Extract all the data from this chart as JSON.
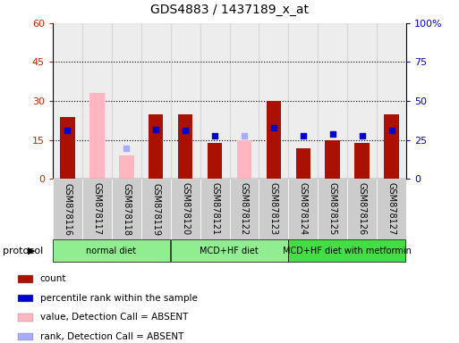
{
  "title": "GDS4883 / 1437189_x_at",
  "samples": [
    "GSM878116",
    "GSM878117",
    "GSM878118",
    "GSM878119",
    "GSM878120",
    "GSM878121",
    "GSM878122",
    "GSM878123",
    "GSM878124",
    "GSM878125",
    "GSM878126",
    "GSM878127"
  ],
  "count_values": [
    24,
    null,
    null,
    25,
    25,
    14,
    null,
    30,
    12,
    15,
    14,
    25
  ],
  "count_absent_values": [
    null,
    33,
    9,
    null,
    null,
    null,
    15,
    null,
    null,
    null,
    null,
    null
  ],
  "percentile_values": [
    31,
    null,
    null,
    32,
    31,
    28,
    null,
    33,
    28,
    29,
    28,
    31
  ],
  "percentile_absent_values": [
    null,
    null,
    20,
    null,
    null,
    null,
    28,
    null,
    null,
    null,
    null,
    null
  ],
  "left_ylim": [
    0,
    60
  ],
  "right_ylim": [
    0,
    100
  ],
  "left_yticks": [
    0,
    15,
    30,
    45,
    60
  ],
  "right_yticks": [
    0,
    25,
    50,
    75,
    100
  ],
  "left_yticklabels": [
    "0",
    "15",
    "30",
    "45",
    "60"
  ],
  "right_yticklabels": [
    "0",
    "25",
    "50",
    "75",
    "100%"
  ],
  "protocols": [
    {
      "label": "normal diet",
      "start": 0,
      "end": 4,
      "color": "#90ee90"
    },
    {
      "label": "MCD+HF diet",
      "start": 4,
      "end": 8,
      "color": "#90ee90"
    },
    {
      "label": "MCD+HF diet with metformin",
      "start": 8,
      "end": 12,
      "color": "#44dd44"
    }
  ],
  "bar_color_present": "#aa1100",
  "bar_color_absent": "#ffb6c1",
  "dot_color_present": "#0000cc",
  "dot_color_absent": "#aaaaff",
  "bar_width": 0.5,
  "legend_items": [
    {
      "label": "count",
      "color": "#aa1100"
    },
    {
      "label": "percentile rank within the sample",
      "color": "#0000cc"
    },
    {
      "label": "value, Detection Call = ABSENT",
      "color": "#ffb6c1"
    },
    {
      "label": "rank, Detection Call = ABSENT",
      "color": "#aaaaff"
    }
  ],
  "left_color": "#cc2200",
  "right_color": "#0000cc",
  "background_color": "#ffffff",
  "xtick_bg_color": "#cccccc",
  "dotted_line_color": "#000000",
  "dotted_yvals": [
    15,
    30,
    45
  ]
}
